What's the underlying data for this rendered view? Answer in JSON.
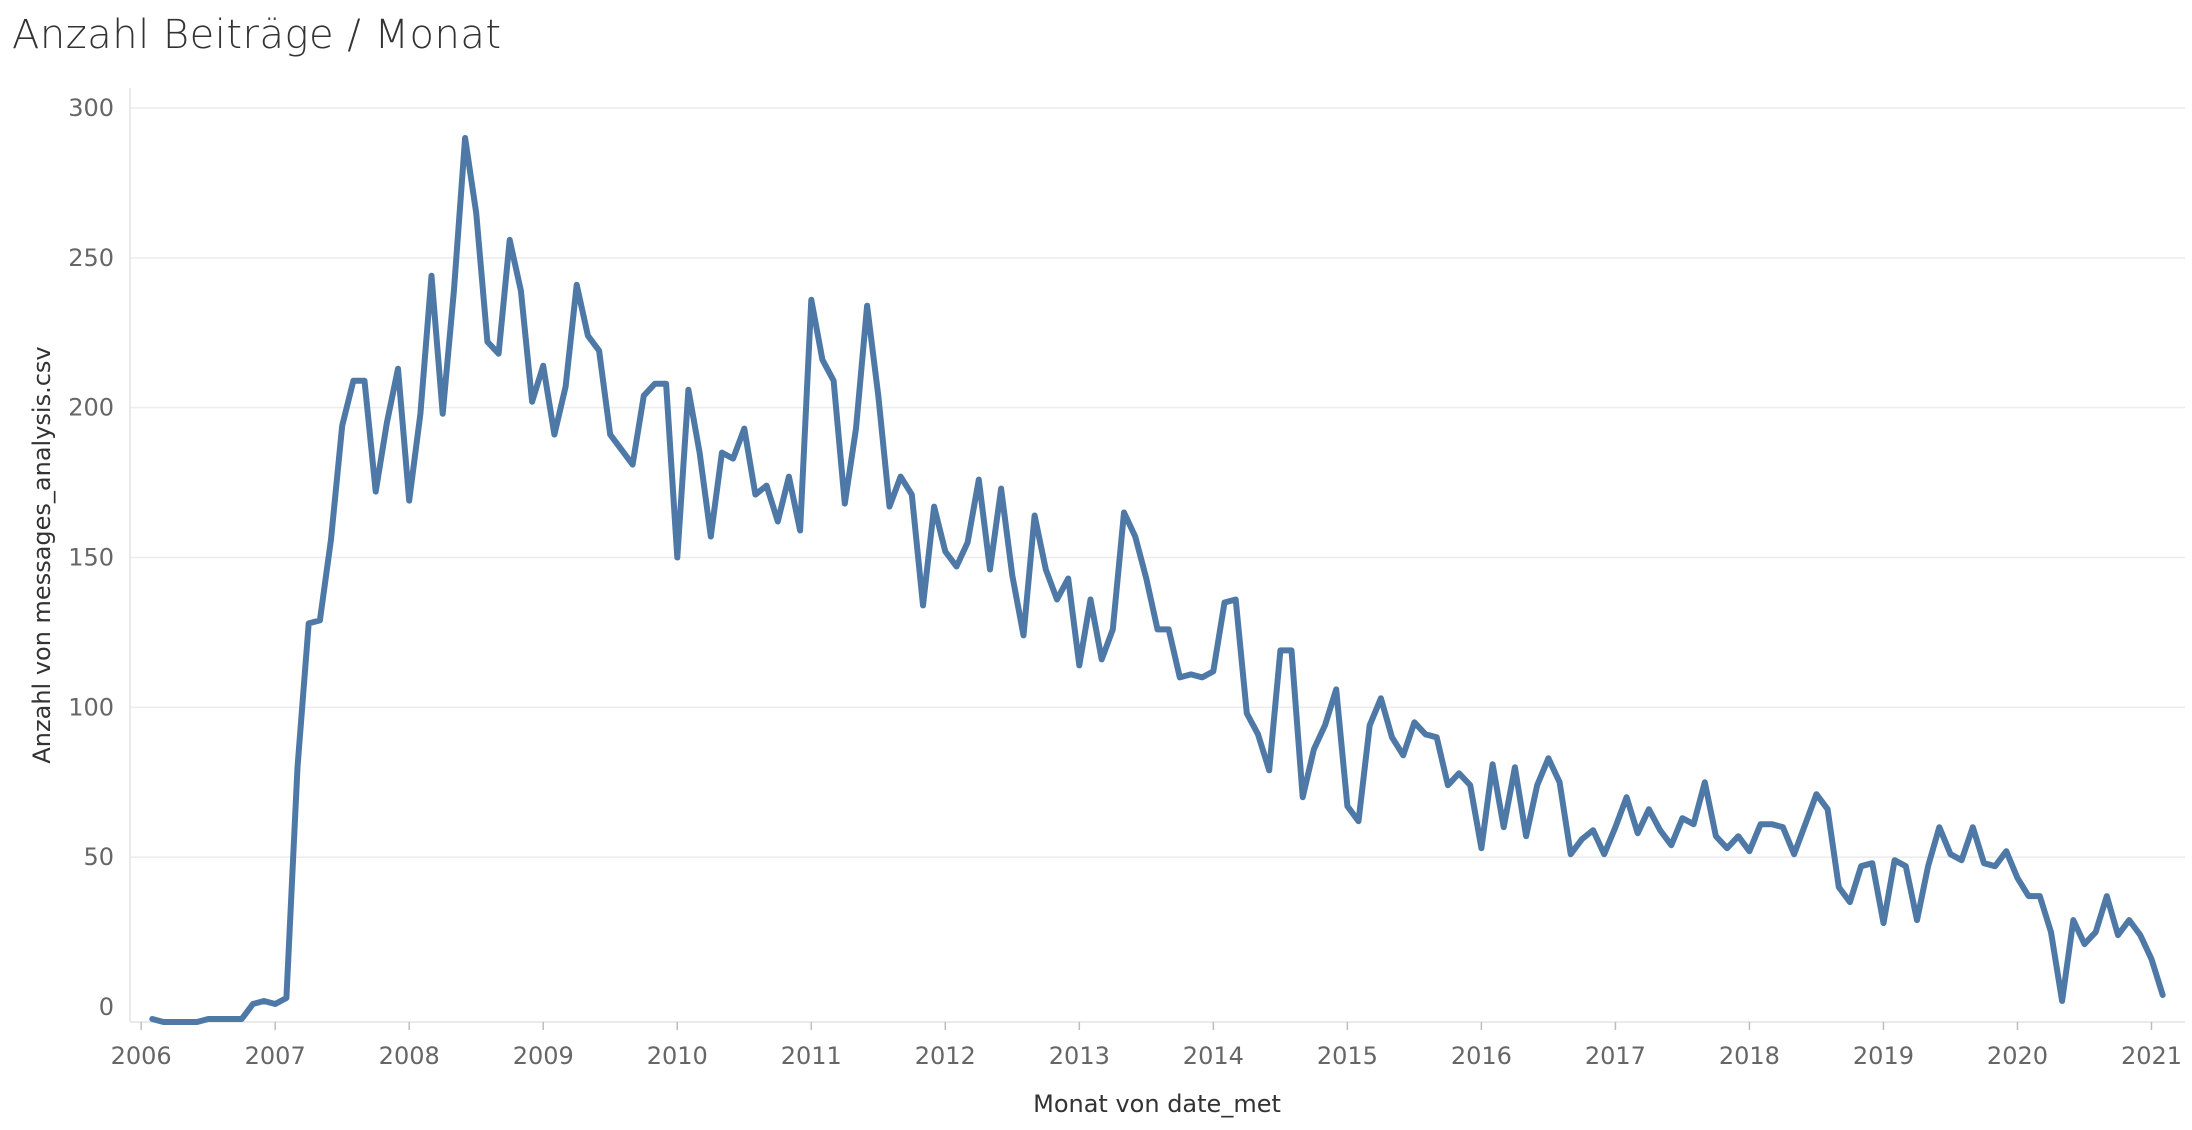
{
  "title": "Anzahl Beiträge / Monat",
  "chart_data": {
    "type": "line",
    "title": "Anzahl Beiträge / Monat",
    "xlabel": "Monat von date_met",
    "ylabel": "Anzahl von messages_analysis.csv",
    "xlim": [
      "2005-12",
      "2021-04"
    ],
    "ylim": [
      0,
      300
    ],
    "x_ticks": [
      "2006",
      "2007",
      "2008",
      "2009",
      "2010",
      "2011",
      "2012",
      "2013",
      "2014",
      "2015",
      "2016",
      "2017",
      "2018",
      "2019",
      "2020",
      "2021"
    ],
    "y_ticks": [
      "0",
      "50",
      "100",
      "150",
      "200",
      "250",
      "300"
    ],
    "grid": true,
    "color": "#4e79a7",
    "series": [
      {
        "start": "2006-02",
        "values": [
          -4,
          -5,
          -5,
          -5,
          -5,
          -4,
          -4,
          -4,
          -4,
          1,
          2,
          1,
          3,
          80,
          128,
          129,
          156,
          194,
          209,
          209,
          172,
          195,
          213,
          169,
          198,
          244,
          198,
          239,
          290,
          265,
          222,
          218,
          256,
          239,
          202,
          214,
          191,
          207,
          241,
          224,
          219,
          191,
          186,
          181,
          204,
          208,
          208,
          150,
          206,
          185,
          157,
          185,
          183,
          193,
          171,
          174,
          162,
          177,
          159,
          236,
          216,
          209,
          168,
          193,
          234,
          204,
          167,
          177,
          171,
          134,
          167,
          152,
          147,
          155,
          176,
          146,
          173,
          144,
          124,
          164,
          146,
          136,
          143,
          114,
          136,
          116,
          126,
          165,
          157,
          143,
          126,
          126,
          110,
          111,
          110,
          112,
          135,
          136,
          98,
          91,
          79,
          119,
          119,
          70,
          86,
          94,
          106,
          67,
          62,
          94,
          103,
          90,
          84,
          95,
          91,
          90,
          74,
          78,
          74,
          53,
          81,
          60,
          80,
          57,
          74,
          83,
          75,
          51,
          56,
          59,
          51,
          60,
          70,
          58,
          66,
          59,
          54,
          63,
          61,
          75,
          57,
          53,
          57,
          52,
          61,
          61,
          60,
          51,
          61,
          71,
          66,
          40,
          35,
          47,
          48,
          28,
          49,
          47,
          29,
          47,
          60,
          51,
          49,
          60,
          48,
          47,
          52,
          43,
          37,
          37,
          25,
          2,
          29,
          21,
          25,
          37,
          24,
          29,
          24,
          16,
          4
        ]
      }
    ]
  }
}
